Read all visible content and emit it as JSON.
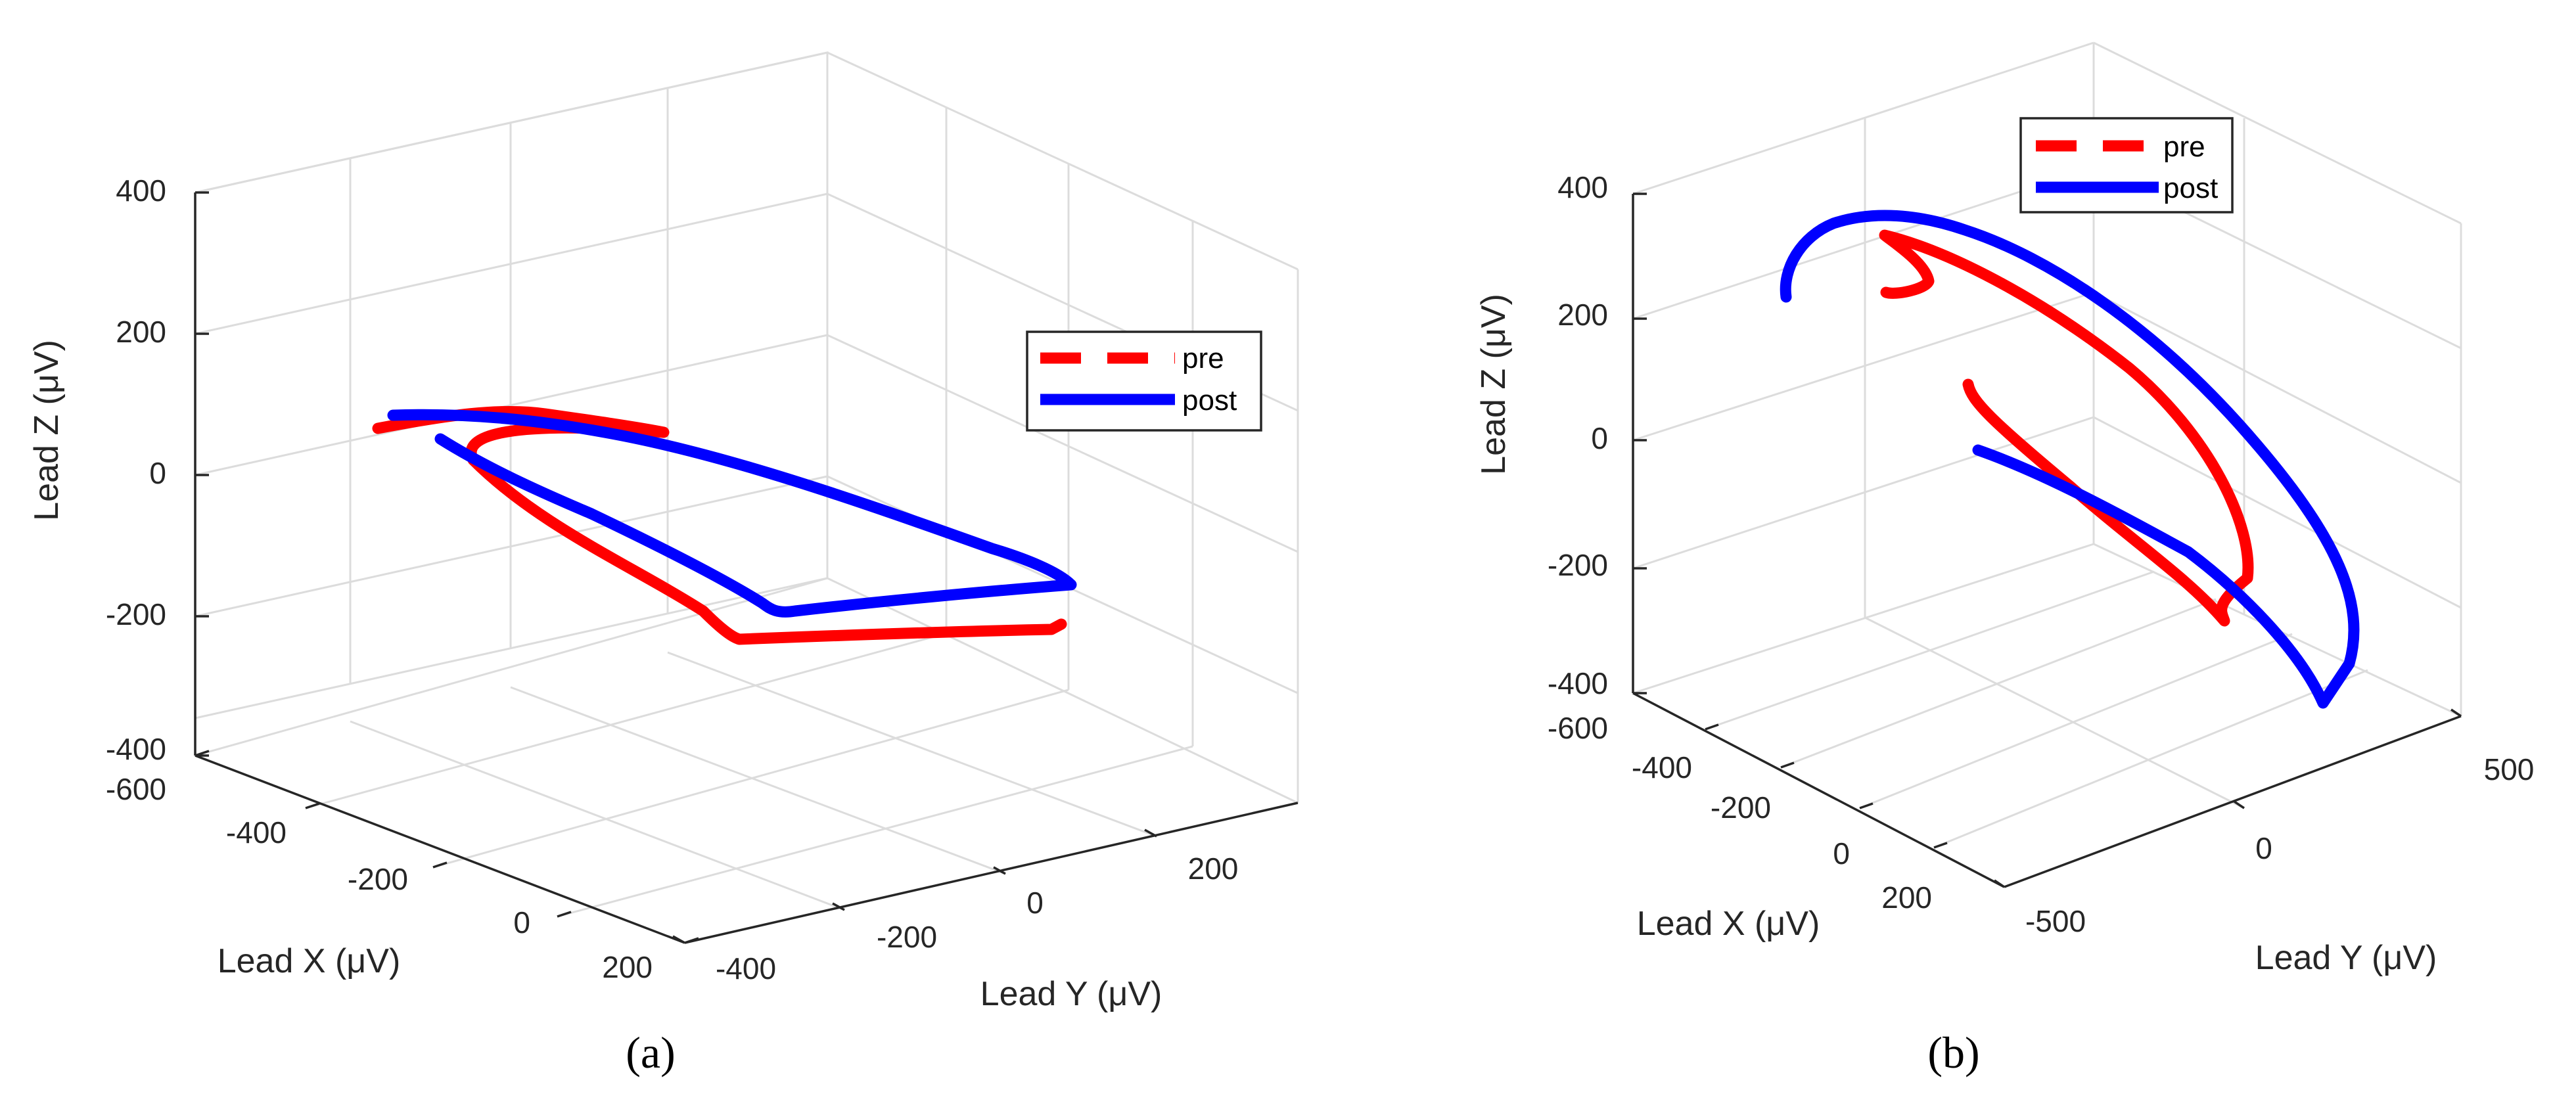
{
  "chart_data": [
    {
      "type": "line",
      "panel_label": "(a)",
      "xlabel": "Lead X (μV)",
      "ylabel": "Lead Y (μV)",
      "zlabel": "Lead Z (μV)",
      "xticks": [
        "-600",
        "-400",
        "-200",
        "0",
        "200"
      ],
      "yticks": [
        "-400",
        "-200",
        "0",
        "200"
      ],
      "zticks": [
        "-400",
        "-200",
        "0",
        "200",
        "400"
      ],
      "legend": [
        "pre",
        "post"
      ],
      "colors": {
        "pre": "#ff0000",
        "post": "#0000ff"
      },
      "series": [
        {
          "name": "pre",
          "z_range": [
            -240,
            80
          ]
        },
        {
          "name": "post",
          "z_range": [
            -200,
            85
          ]
        }
      ]
    },
    {
      "type": "line",
      "panel_label": "(b)",
      "xlabel": "Lead X (μV)",
      "ylabel": "Lead Y (μV)",
      "zlabel": "Lead Z (μV)",
      "xticks": [
        "-600",
        "-400",
        "-200",
        "0",
        "200"
      ],
      "yticks": [
        "-500",
        "0",
        "500"
      ],
      "zticks": [
        "-400",
        "-200",
        "0",
        "200",
        "400"
      ],
      "legend": [
        "pre",
        "post"
      ],
      "colors": {
        "pre": "#ff0000",
        "post": "#0000ff"
      },
      "series": [
        {
          "name": "pre",
          "z_range": [
            -290,
            320
          ]
        },
        {
          "name": "post",
          "z_range": [
            -400,
            360
          ]
        }
      ]
    }
  ]
}
